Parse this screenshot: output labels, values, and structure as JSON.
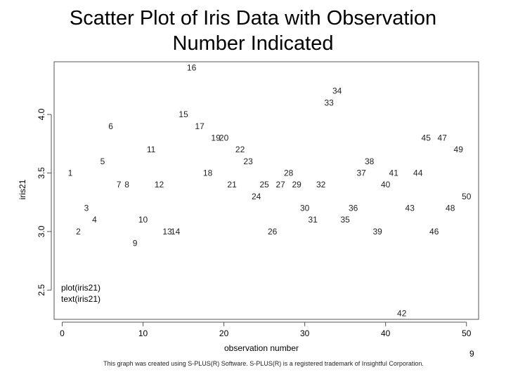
{
  "slide": {
    "title_line1": "Scatter Plot of Iris Data with Observation",
    "title_line2": "Number Indicated",
    "footer": "This graph was created using S-PLUS(R) Software. S-PLUS(R) is a registered trademark of Insightful Corporation.",
    "page_number": "9"
  },
  "chart_data": {
    "type": "scatter",
    "title": "",
    "xlabel": "observation number",
    "ylabel": "iris21",
    "xlim": [
      -1,
      51.5
    ],
    "ylim": [
      2.25,
      4.45
    ],
    "x_ticks": [
      0,
      10,
      20,
      30,
      40,
      50
    ],
    "y_ticks": [
      2.5,
      3.0,
      3.5,
      4.0
    ],
    "grid": false,
    "point_marker": "observation number text",
    "annotation": [
      "plot(iris21)",
      "text(iris21)"
    ],
    "series": [
      {
        "x": [
          1,
          2,
          3,
          4,
          5,
          6,
          7,
          8,
          9,
          10,
          11,
          12,
          13,
          14,
          15,
          16,
          17,
          18,
          19,
          20,
          21,
          22,
          23,
          24,
          25,
          26,
          27,
          28,
          29,
          30,
          31,
          32,
          33,
          34,
          35,
          36,
          37,
          38,
          39,
          40,
          41,
          42,
          43,
          44,
          45,
          46,
          47,
          48,
          49,
          50
        ],
        "y": [
          3.5,
          3.0,
          3.2,
          3.1,
          3.6,
          3.9,
          3.4,
          3.4,
          2.9,
          3.1,
          3.7,
          3.4,
          3.0,
          3.0,
          4.0,
          4.4,
          3.9,
          3.5,
          3.8,
          3.8,
          3.4,
          3.7,
          3.6,
          3.3,
          3.4,
          3.0,
          3.4,
          3.5,
          3.4,
          3.2,
          3.1,
          3.4,
          4.1,
          4.2,
          3.1,
          3.2,
          3.5,
          3.6,
          3.0,
          3.4,
          3.5,
          2.3,
          3.2,
          3.5,
          3.8,
          3.0,
          3.8,
          3.2,
          3.7,
          3.3
        ]
      }
    ]
  }
}
